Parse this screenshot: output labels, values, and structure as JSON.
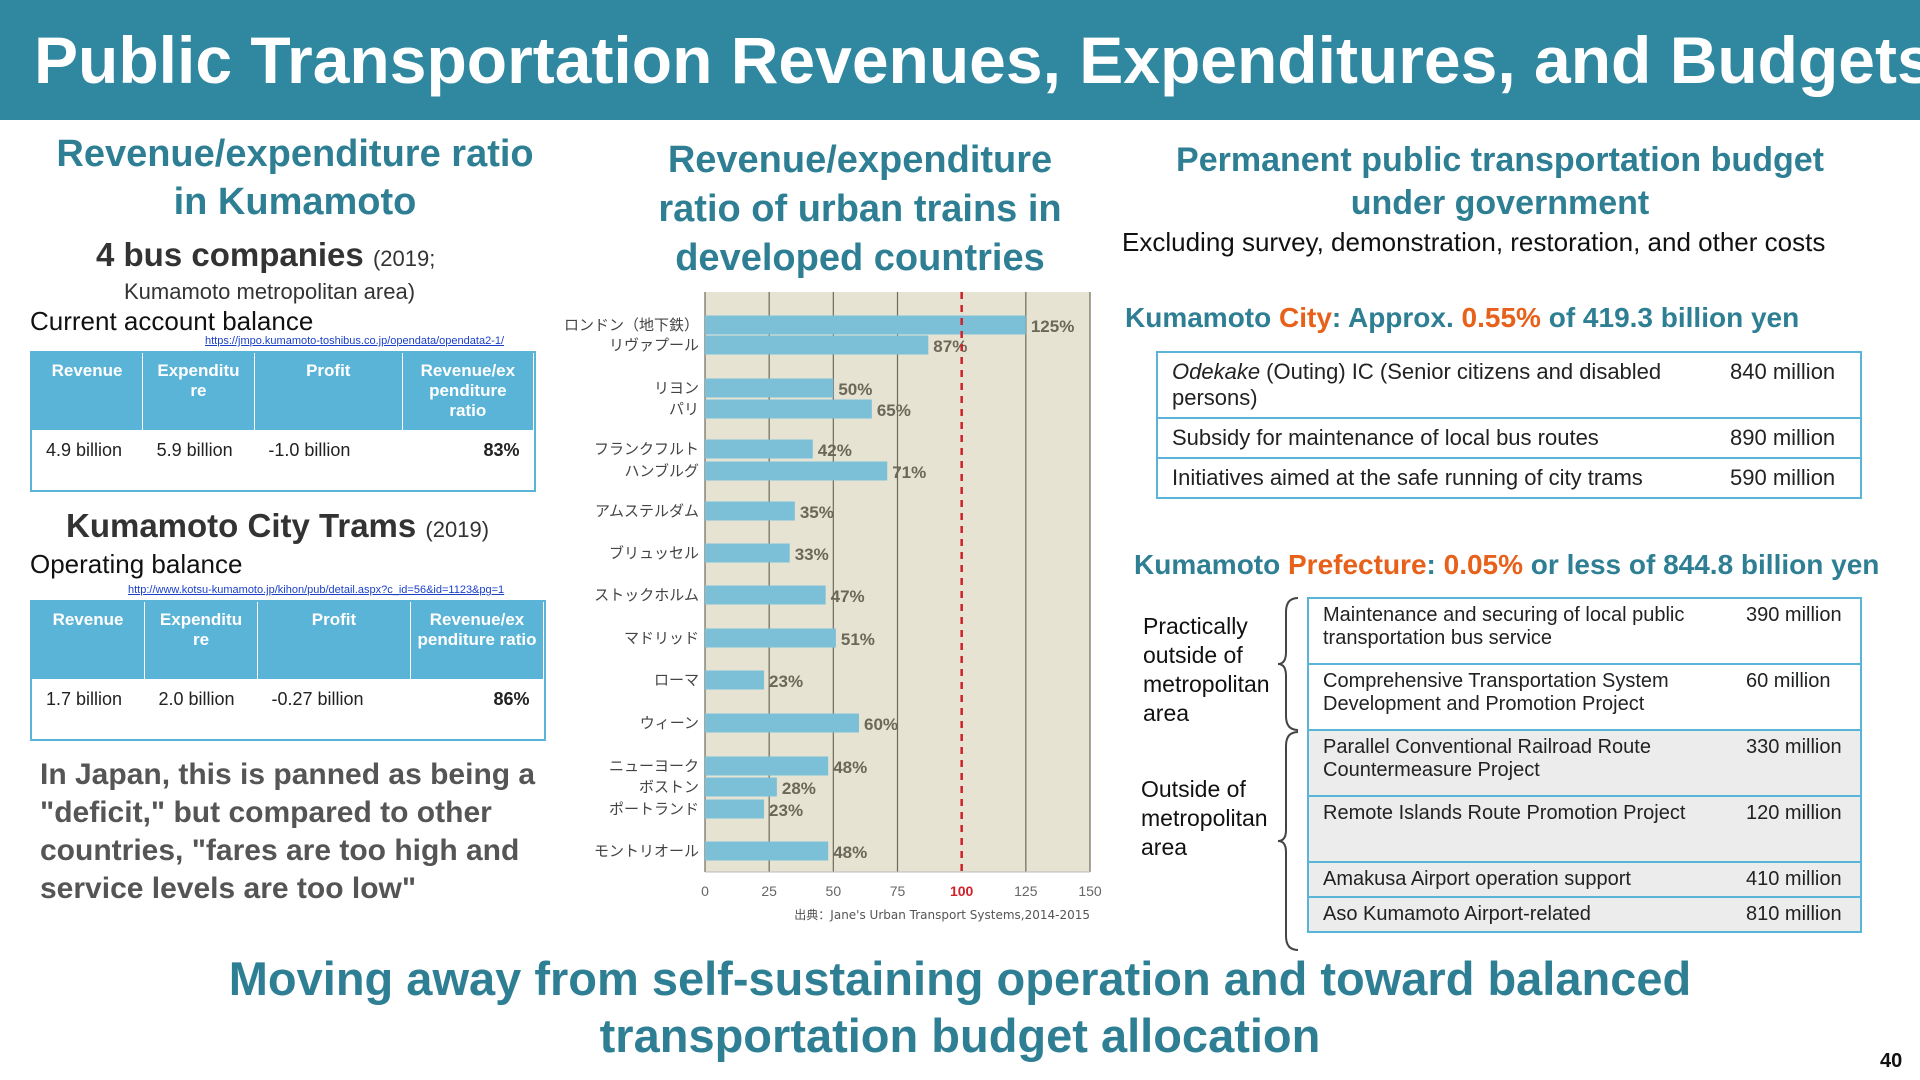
{
  "title": "Public Transportation Revenues, Expenditures, and Budgets",
  "left": {
    "heading": [
      "Revenue/expenditure ratio",
      "in Kumamoto"
    ],
    "bus": {
      "title": "4 bus companies",
      "year": "(2019;",
      "area": "Kumamoto metropolitan area)",
      "label": "Current account balance",
      "link": "https://jmpo.kumamoto-toshibus.co.jp/opendata/opendata2-1/",
      "headers": [
        "Revenue",
        "Expenditu re",
        "Profit",
        "Revenue/ex penditure ratio"
      ],
      "row": [
        "4.9 billion",
        "5.9 billion",
        "-1.0 billion",
        "83%"
      ]
    },
    "trams": {
      "title": "Kumamoto City Trams",
      "year": "(2019)",
      "label": "Operating balance",
      "link": "http://www.kotsu-kumamoto.jp/kihon/pub/detail.aspx?c_id=56&id=1123&pg=1",
      "headers": [
        "Revenue",
        "Expenditu re",
        "Profit",
        "Revenue/ex penditure ratio"
      ],
      "row": [
        "1.7 billion",
        "2.0 billion",
        "-0.27 billion",
        "86%"
      ]
    },
    "note": "In Japan, this is panned as being a \"deficit,\" but compared to other countries, \"fares are too high and service levels are too low\""
  },
  "middle": {
    "heading": [
      "Revenue/expenditure",
      "ratio of urban trains in",
      "developed countries"
    ]
  },
  "chart_data": {
    "type": "bar",
    "orientation": "horizontal",
    "categories": [
      "ロンドン（地下鉄）",
      "リヴァプール",
      "リヨン",
      "パリ",
      "フランクフルト",
      "ハンブルグ",
      "アムステルダム",
      "ブリュッセル",
      "ストックホルム",
      "マドリッド",
      "ローマ",
      "ウィーン",
      "ニューヨーク",
      "ボストン",
      "ポートランド",
      "モントリオール"
    ],
    "values": [
      125,
      87,
      50,
      65,
      42,
      71,
      35,
      33,
      47,
      51,
      23,
      60,
      48,
      28,
      23,
      48
    ],
    "value_labels": [
      "125%",
      "87%",
      "50%",
      "65%",
      "42%",
      "71%",
      "35%",
      "33%",
      "47%",
      "51%",
      "23%",
      "60%",
      "48%",
      "28%",
      "23%",
      "48%"
    ],
    "groups": [
      [
        0,
        1
      ],
      [
        2,
        3
      ],
      [
        4,
        5
      ],
      [
        6
      ],
      [
        7
      ],
      [
        8
      ],
      [
        9
      ],
      [
        10
      ],
      [
        11
      ],
      [
        12,
        13,
        14
      ],
      [
        15
      ]
    ],
    "xlim": [
      0,
      150
    ],
    "xticks": [
      "0",
      "25",
      "50",
      "75",
      "100",
      "125",
      "150"
    ],
    "highlight_tick": "100",
    "reference_line": 100,
    "source": "出典：Jane's Urban Transport Systems,2014-2015",
    "colors": {
      "bar": "#7cc0d8",
      "plot_bg": "#e6e3d3",
      "grid": "#6d6a5c",
      "reference": "#d0202a",
      "label": "#6b6759"
    }
  },
  "right": {
    "heading": [
      "Permanent public transportation budget",
      "under government"
    ],
    "subheading": "Excluding survey, demonstration, restoration, and other costs",
    "city": {
      "pre": "Kumamoto ",
      "entity": "City",
      "mid": ": Approx. ",
      "pct": "0.55%",
      "post": " of 419.3 billion yen",
      "rows": [
        {
          "label_em": "Odekake",
          "label": " (Outing) IC (Senior citizens and disabled persons)",
          "amount": "840 million"
        },
        {
          "label": "Subsidy for maintenance of local bus routes",
          "amount": "890 million"
        },
        {
          "label": "Initiatives aimed at the safe running of city trams",
          "amount": "590 million"
        }
      ]
    },
    "pref": {
      "pre": "Kumamoto ",
      "entity": "Prefecture",
      "mid": ": ",
      "pct": "0.05%",
      "post": " or less of 844.8 billion yen",
      "group1": "Practically outside of metropolitan area",
      "group2": "Outside of metropolitan area",
      "rows": [
        {
          "label": "Maintenance and securing of local public transportation bus service",
          "amount": "390 million"
        },
        {
          "label": "Comprehensive Transportation System Development and Promotion Project",
          "amount": "60 million"
        },
        {
          "label": "Parallel Conventional Railroad Route Countermeasure Project",
          "amount": "330 million"
        },
        {
          "label": "Remote Islands Route Promotion Project",
          "amount": "120 million"
        },
        {
          "label": "Amakusa Airport operation support",
          "amount": "410 million"
        },
        {
          "label": "Aso Kumamoto Airport-related",
          "amount": "810 million"
        }
      ]
    }
  },
  "footer": [
    "Moving away from self-sustaining operation and toward balanced",
    "transportation budget allocation"
  ],
  "page_number": "40"
}
